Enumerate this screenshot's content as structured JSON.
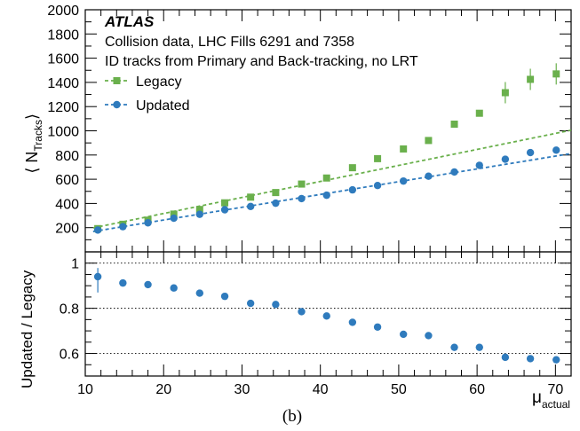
{
  "chart_data": [
    {
      "type": "scatter",
      "experiment": "ATLAS",
      "annotations": [
        "Collision data, LHC Fills 6291 and 7358",
        "ID tracks from Primary and Back-tracking, no LRT"
      ],
      "ylabel": "⟨ N",
      "ylabel_sub": "Tracks",
      "ylabel_close": "⟩",
      "xlim": [
        10,
        72
      ],
      "ylim": [
        0,
        2000
      ],
      "yticks": [
        200,
        400,
        600,
        800,
        1000,
        1200,
        1400,
        1600,
        1800,
        2000
      ],
      "legend_position": "upper-left",
      "x": [
        11.6,
        14.8,
        18.0,
        21.3,
        24.6,
        27.8,
        31.1,
        34.3,
        37.6,
        40.8,
        44.1,
        47.3,
        50.6,
        53.8,
        57.1,
        60.3,
        63.6,
        66.8,
        70.1
      ],
      "series": [
        {
          "name": "Legacy",
          "marker": "square",
          "color": "#6ab04c",
          "values": [
            192,
            228,
            262,
            312,
            350,
            405,
            452,
            490,
            560,
            610,
            695,
            770,
            850,
            920,
            1055,
            1145,
            1315,
            1425,
            1470
          ],
          "fit": [
            [
              11,
              198
            ],
            [
              72,
              1005
            ]
          ]
        },
        {
          "name": "Updated",
          "marker": "circle",
          "color": "#2f7bbd",
          "values": [
            180,
            208,
            240,
            278,
            310,
            348,
            375,
            402,
            440,
            468,
            512,
            548,
            585,
            625,
            660,
            715,
            765,
            820,
            840
          ],
          "fit": [
            [
              11,
              168
            ],
            [
              72,
              812
            ]
          ]
        }
      ]
    },
    {
      "type": "scatter",
      "xlabel": "μ",
      "xlabel_sub": "actual",
      "ylabel": "Updated / Legacy",
      "xlim": [
        10,
        72
      ],
      "ylim": [
        0.5,
        1.05
      ],
      "xticks": [
        10,
        20,
        30,
        40,
        50,
        60,
        70
      ],
      "yticks": [
        0.6,
        0.8,
        1
      ],
      "reference_lines": [
        0.6,
        0.8,
        1.0
      ],
      "x": [
        11.6,
        14.8,
        18.0,
        21.3,
        24.6,
        27.8,
        31.1,
        34.3,
        37.6,
        40.8,
        44.1,
        47.3,
        50.6,
        53.8,
        57.1,
        60.3,
        63.6,
        66.8,
        70.1
      ],
      "values": [
        0.94,
        0.912,
        0.905,
        0.89,
        0.867,
        0.853,
        0.822,
        0.817,
        0.785,
        0.766,
        0.738,
        0.717,
        0.685,
        0.679,
        0.627,
        0.627,
        0.583,
        0.577,
        0.572
      ],
      "errors": [
        0.07,
        0,
        0,
        0,
        0,
        0,
        0,
        0,
        0,
        0,
        0,
        0,
        0,
        0,
        0,
        0,
        0.008,
        0.01,
        0.015
      ],
      "color": "#2f7bbd"
    }
  ],
  "caption": "(b)"
}
